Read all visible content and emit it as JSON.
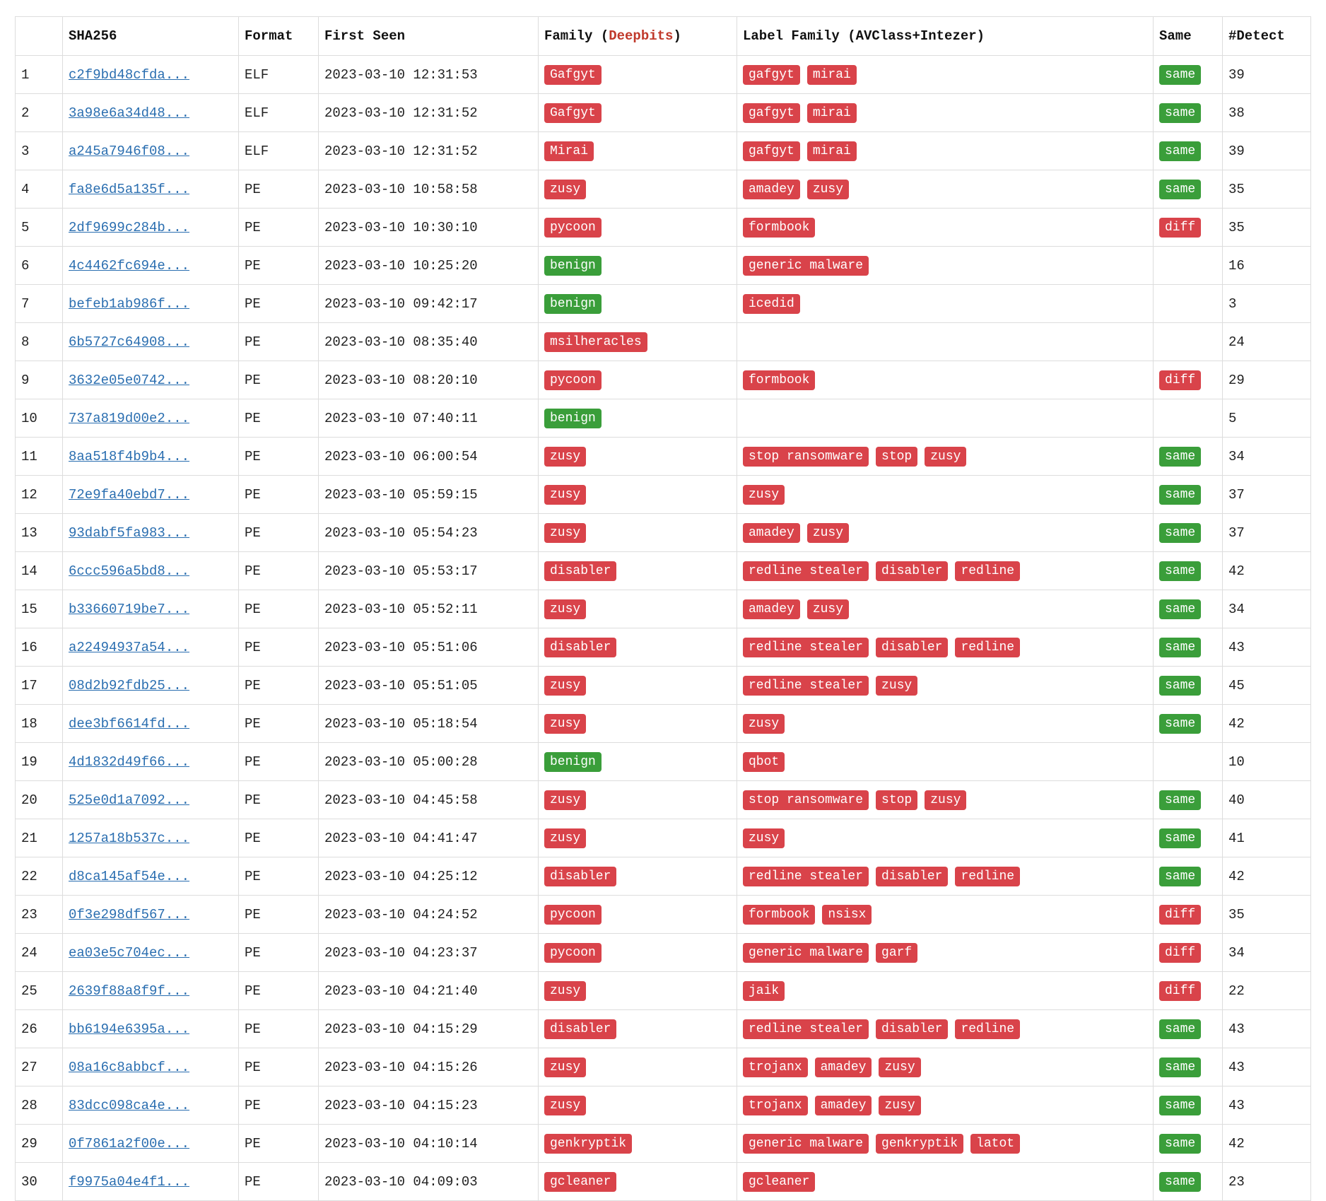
{
  "colors": {
    "malicious_badge": "#d9434a",
    "benign_badge": "#3a9e3a",
    "same_badge": "#3a9e3a",
    "diff_badge": "#d9434a",
    "link": "#2a6eb0",
    "deepbits_accent": "#c0392b"
  },
  "table": {
    "headers": {
      "index": "",
      "sha": "SHA256",
      "format": "Format",
      "first_seen": "First Seen",
      "family_prefix": "Family (",
      "family_accent": "Deepbits",
      "family_suffix": ")",
      "label_family": "Label Family (AVClass+Intezer)",
      "same": "Same",
      "detect": "#Detect"
    },
    "rows": [
      {
        "idx": "1",
        "sha": "c2f9bd48cfda...",
        "format": "ELF",
        "seen": "2023-03-10 12:31:53",
        "family": "Gafgyt",
        "labels": [
          "gafgyt",
          "mirai"
        ],
        "same": "same",
        "detect": "39"
      },
      {
        "idx": "2",
        "sha": "3a98e6a34d48...",
        "format": "ELF",
        "seen": "2023-03-10 12:31:52",
        "family": "Gafgyt",
        "labels": [
          "gafgyt",
          "mirai"
        ],
        "same": "same",
        "detect": "38"
      },
      {
        "idx": "3",
        "sha": "a245a7946f08...",
        "format": "ELF",
        "seen": "2023-03-10 12:31:52",
        "family": "Mirai",
        "labels": [
          "gafgyt",
          "mirai"
        ],
        "same": "same",
        "detect": "39"
      },
      {
        "idx": "4",
        "sha": "fa8e6d5a135f...",
        "format": "PE",
        "seen": "2023-03-10 10:58:58",
        "family": "zusy",
        "labels": [
          "amadey",
          "zusy"
        ],
        "same": "same",
        "detect": "35"
      },
      {
        "idx": "5",
        "sha": "2df9699c284b...",
        "format": "PE",
        "seen": "2023-03-10 10:30:10",
        "family": "pycoon",
        "labels": [
          "formbook"
        ],
        "same": "diff",
        "detect": "35"
      },
      {
        "idx": "6",
        "sha": "4c4462fc694e...",
        "format": "PE",
        "seen": "2023-03-10 10:25:20",
        "family": "benign",
        "labels": [
          "generic malware"
        ],
        "same": "",
        "detect": "16"
      },
      {
        "idx": "7",
        "sha": "befeb1ab986f...",
        "format": "PE",
        "seen": "2023-03-10 09:42:17",
        "family": "benign",
        "labels": [
          "icedid"
        ],
        "same": "",
        "detect": "3"
      },
      {
        "idx": "8",
        "sha": "6b5727c64908...",
        "format": "PE",
        "seen": "2023-03-10 08:35:40",
        "family": "msilheracles",
        "labels": [],
        "same": "",
        "detect": "24"
      },
      {
        "idx": "9",
        "sha": "3632e05e0742...",
        "format": "PE",
        "seen": "2023-03-10 08:20:10",
        "family": "pycoon",
        "labels": [
          "formbook"
        ],
        "same": "diff",
        "detect": "29"
      },
      {
        "idx": "10",
        "sha": "737a819d00e2...",
        "format": "PE",
        "seen": "2023-03-10 07:40:11",
        "family": "benign",
        "labels": [],
        "same": "",
        "detect": "5"
      },
      {
        "idx": "11",
        "sha": "8aa518f4b9b4...",
        "format": "PE",
        "seen": "2023-03-10 06:00:54",
        "family": "zusy",
        "labels": [
          "stop ransomware",
          "stop",
          "zusy"
        ],
        "same": "same",
        "detect": "34"
      },
      {
        "idx": "12",
        "sha": "72e9fa40ebd7...",
        "format": "PE",
        "seen": "2023-03-10 05:59:15",
        "family": "zusy",
        "labels": [
          "zusy"
        ],
        "same": "same",
        "detect": "37"
      },
      {
        "idx": "13",
        "sha": "93dabf5fa983...",
        "format": "PE",
        "seen": "2023-03-10 05:54:23",
        "family": "zusy",
        "labels": [
          "amadey",
          "zusy"
        ],
        "same": "same",
        "detect": "37"
      },
      {
        "idx": "14",
        "sha": "6ccc596a5bd8...",
        "format": "PE",
        "seen": "2023-03-10 05:53:17",
        "family": "disabler",
        "labels": [
          "redline stealer",
          "disabler",
          "redline"
        ],
        "same": "same",
        "detect": "42"
      },
      {
        "idx": "15",
        "sha": "b33660719be7...",
        "format": "PE",
        "seen": "2023-03-10 05:52:11",
        "family": "zusy",
        "labels": [
          "amadey",
          "zusy"
        ],
        "same": "same",
        "detect": "34"
      },
      {
        "idx": "16",
        "sha": "a22494937a54...",
        "format": "PE",
        "seen": "2023-03-10 05:51:06",
        "family": "disabler",
        "labels": [
          "redline stealer",
          "disabler",
          "redline"
        ],
        "same": "same",
        "detect": "43"
      },
      {
        "idx": "17",
        "sha": "08d2b92fdb25...",
        "format": "PE",
        "seen": "2023-03-10 05:51:05",
        "family": "zusy",
        "labels": [
          "redline stealer",
          "zusy"
        ],
        "same": "same",
        "detect": "45"
      },
      {
        "idx": "18",
        "sha": "dee3bf6614fd...",
        "format": "PE",
        "seen": "2023-03-10 05:18:54",
        "family": "zusy",
        "labels": [
          "zusy"
        ],
        "same": "same",
        "detect": "42"
      },
      {
        "idx": "19",
        "sha": "4d1832d49f66...",
        "format": "PE",
        "seen": "2023-03-10 05:00:28",
        "family": "benign",
        "labels": [
          "qbot"
        ],
        "same": "",
        "detect": "10"
      },
      {
        "idx": "20",
        "sha": "525e0d1a7092...",
        "format": "PE",
        "seen": "2023-03-10 04:45:58",
        "family": "zusy",
        "labels": [
          "stop ransomware",
          "stop",
          "zusy"
        ],
        "same": "same",
        "detect": "40"
      },
      {
        "idx": "21",
        "sha": "1257a18b537c...",
        "format": "PE",
        "seen": "2023-03-10 04:41:47",
        "family": "zusy",
        "labels": [
          "zusy"
        ],
        "same": "same",
        "detect": "41"
      },
      {
        "idx": "22",
        "sha": "d8ca145af54e...",
        "format": "PE",
        "seen": "2023-03-10 04:25:12",
        "family": "disabler",
        "labels": [
          "redline stealer",
          "disabler",
          "redline"
        ],
        "same": "same",
        "detect": "42"
      },
      {
        "idx": "23",
        "sha": "0f3e298df567...",
        "format": "PE",
        "seen": "2023-03-10 04:24:52",
        "family": "pycoon",
        "labels": [
          "formbook",
          "nsisx"
        ],
        "same": "diff",
        "detect": "35"
      },
      {
        "idx": "24",
        "sha": "ea03e5c704ec...",
        "format": "PE",
        "seen": "2023-03-10 04:23:37",
        "family": "pycoon",
        "labels": [
          "generic malware",
          "garf"
        ],
        "same": "diff",
        "detect": "34"
      },
      {
        "idx": "25",
        "sha": "2639f88a8f9f...",
        "format": "PE",
        "seen": "2023-03-10 04:21:40",
        "family": "zusy",
        "labels": [
          "jaik"
        ],
        "same": "diff",
        "detect": "22"
      },
      {
        "idx": "26",
        "sha": "bb6194e6395a...",
        "format": "PE",
        "seen": "2023-03-10 04:15:29",
        "family": "disabler",
        "labels": [
          "redline stealer",
          "disabler",
          "redline"
        ],
        "same": "same",
        "detect": "43"
      },
      {
        "idx": "27",
        "sha": "08a16c8abbcf...",
        "format": "PE",
        "seen": "2023-03-10 04:15:26",
        "family": "zusy",
        "labels": [
          "trojanx",
          "amadey",
          "zusy"
        ],
        "same": "same",
        "detect": "43"
      },
      {
        "idx": "28",
        "sha": "83dcc098ca4e...",
        "format": "PE",
        "seen": "2023-03-10 04:15:23",
        "family": "zusy",
        "labels": [
          "trojanx",
          "amadey",
          "zusy"
        ],
        "same": "same",
        "detect": "43"
      },
      {
        "idx": "29",
        "sha": "0f7861a2f00e...",
        "format": "PE",
        "seen": "2023-03-10 04:10:14",
        "family": "genkryptik",
        "labels": [
          "generic malware",
          "genkryptik",
          "latot"
        ],
        "same": "same",
        "detect": "42"
      },
      {
        "idx": "30",
        "sha": "f9975a04e4f1...",
        "format": "PE",
        "seen": "2023-03-10 04:09:03",
        "family": "gcleaner",
        "labels": [
          "gcleaner"
        ],
        "same": "same",
        "detect": "23"
      }
    ]
  }
}
